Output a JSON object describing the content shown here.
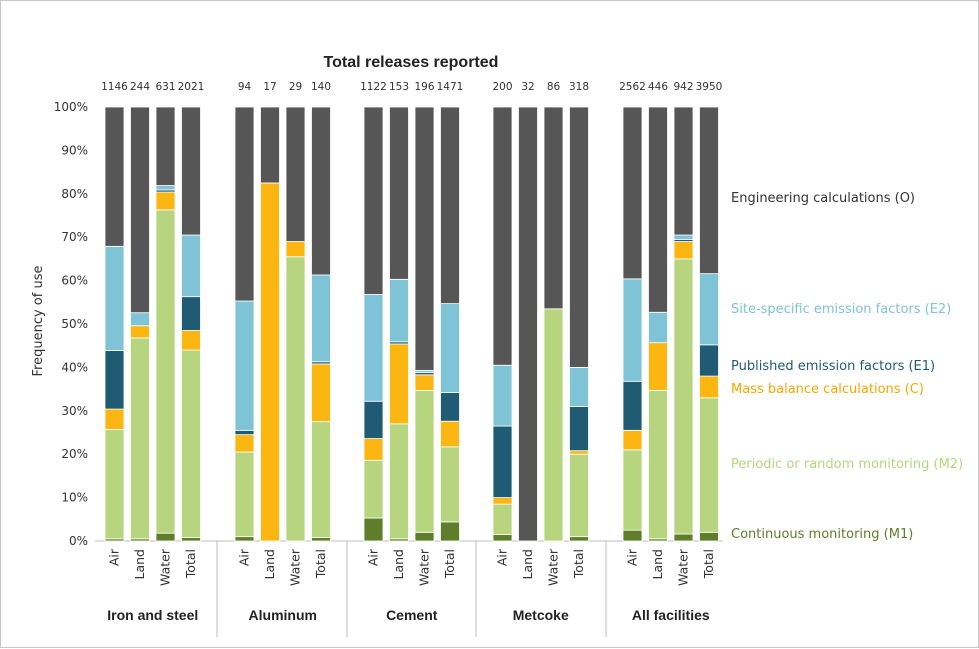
{
  "chart_data": {
    "type": "bar",
    "stacked": true,
    "title": "Total releases reported",
    "ylabel": "Frequency of use",
    "ylim": [
      0,
      100
    ],
    "yticks": [
      "0%",
      "10%",
      "20%",
      "30%",
      "40%",
      "50%",
      "60%",
      "70%",
      "80%",
      "90%",
      "100%"
    ],
    "groups": [
      {
        "name": "Iron and steel",
        "bars": [
          {
            "medium": "Air",
            "total": "1146",
            "values": [
              0.5,
              25.2,
              4.7,
              13.5,
              24,
              32.1
            ]
          },
          {
            "medium": "Land",
            "total": "244",
            "values": [
              0.5,
              46.3,
              2.8,
              0,
              3,
              47.4
            ]
          },
          {
            "medium": "Water",
            "total": "631",
            "values": [
              1.8,
              74.5,
              4.1,
              0.5,
              1,
              18.1
            ]
          },
          {
            "medium": "Total",
            "total": "2021",
            "values": [
              0.8,
              43.2,
              4.5,
              7.8,
              14.2,
              29.5
            ]
          }
        ]
      },
      {
        "name": "Aluminum",
        "bars": [
          {
            "medium": "Air",
            "total": "94",
            "values": [
              1,
              19.5,
              4,
              1,
              29.8,
              44.7
            ]
          },
          {
            "medium": "Land",
            "total": "17",
            "values": [
              0,
              0,
              82.5,
              0,
              0,
              17.5
            ]
          },
          {
            "medium": "Water",
            "total": "29",
            "values": [
              0,
              65.5,
              3.5,
              0,
              0,
              31
            ]
          },
          {
            "medium": "Total",
            "total": "140",
            "values": [
              0.8,
              26.7,
              13.3,
              0.5,
              20,
              38.7
            ]
          }
        ]
      },
      {
        "name": "Cement",
        "bars": [
          {
            "medium": "Air",
            "total": "1122",
            "values": [
              5.3,
              13.3,
              5,
              8.6,
              24.6,
              43.2
            ]
          },
          {
            "medium": "Land",
            "total": "153",
            "values": [
              0.5,
              26.5,
              18.4,
              0.5,
              14.4,
              39.7
            ]
          },
          {
            "medium": "Water",
            "total": "196",
            "values": [
              2,
              32.7,
              3.6,
              0.5,
              0.5,
              60.7
            ]
          },
          {
            "medium": "Total",
            "total": "1471",
            "values": [
              4.4,
              17.3,
              5.9,
              6.6,
              20.5,
              45.3
            ]
          }
        ]
      },
      {
        "name": "Metcoke",
        "bars": [
          {
            "medium": "Air",
            "total": "200",
            "values": [
              1.5,
              7,
              1.5,
              16.5,
              14,
              59.5
            ]
          },
          {
            "medium": "Land",
            "total": "32",
            "values": [
              0,
              0,
              0,
              0,
              0,
              100
            ]
          },
          {
            "medium": "Water",
            "total": "86",
            "values": [
              0,
              53.5,
              0,
              0,
              0,
              46.5
            ]
          },
          {
            "medium": "Total",
            "total": "318",
            "values": [
              1,
              19,
              0.8,
              10.2,
              9,
              60
            ]
          }
        ]
      },
      {
        "name": "All facilities",
        "bars": [
          {
            "medium": "Air",
            "total": "2562",
            "values": [
              2.5,
              18.5,
              4.5,
              11.3,
              23.6,
              39.6
            ]
          },
          {
            "medium": "Land",
            "total": "446",
            "values": [
              0.5,
              34.2,
              11,
              0,
              7,
              47.3
            ]
          },
          {
            "medium": "Water",
            "total": "942",
            "values": [
              1.6,
              63.4,
              4,
              0.5,
              1,
              29.5
            ]
          },
          {
            "medium": "Total",
            "total": "3950",
            "values": [
              2,
              31,
              5,
              7.2,
              16.4,
              38.4
            ]
          }
        ]
      }
    ],
    "series": [
      {
        "name": "Continuous monitoring (M1)",
        "color": "#5e7e2a"
      },
      {
        "name": "Periodic or random monitoring (M2)",
        "color": "#b6d57e"
      },
      {
        "name": "Mass balance calculations (C)",
        "color": "#fbb612"
      },
      {
        "name": "Published emission factors (E1)",
        "color": "#1f5c73"
      },
      {
        "name": "Site-specific emission factors (E2)",
        "color": "#7fc3d6"
      },
      {
        "name": "Engineering calculations (O)",
        "color": "#565656"
      }
    ],
    "legend_placement": "right"
  }
}
